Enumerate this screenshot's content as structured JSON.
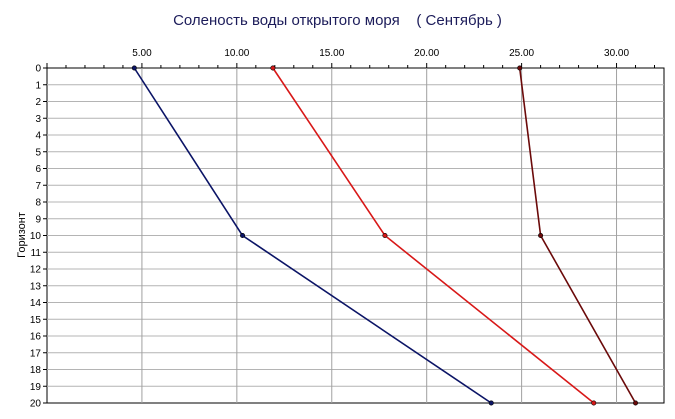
{
  "chart_data": {
    "type": "line",
    "title": "Соленость воды открытого моря    ( Сентябрь )",
    "xlabel": "",
    "ylabel": "Горизонт",
    "x_axis_position": "top",
    "y_axis_inverted": true,
    "xlim": [
      0,
      32.5
    ],
    "ylim": [
      0,
      20
    ],
    "x_ticks": [
      5,
      10,
      15,
      20,
      25,
      30
    ],
    "x_tick_labels": [
      "5.00",
      "10.00",
      "15.00",
      "20.00",
      "25.00",
      "30.00"
    ],
    "y_ticks": [
      0,
      1,
      2,
      3,
      4,
      5,
      6,
      7,
      8,
      9,
      10,
      11,
      12,
      13,
      14,
      15,
      16,
      17,
      18,
      19,
      20
    ],
    "y_tick_labels": [
      "0",
      "1",
      "2",
      "3",
      "4",
      "5",
      "6",
      "7",
      "8",
      "9",
      "10",
      "11",
      "12",
      "13",
      "14",
      "15",
      "16",
      "17",
      "18",
      "19",
      "20"
    ],
    "grid": true,
    "legend": "none",
    "series": [
      {
        "color": "#0b1466",
        "points": [
          {
            "x": 4.6,
            "y": 0
          },
          {
            "x": 10.3,
            "y": 10
          },
          {
            "x": 23.4,
            "y": 20
          }
        ]
      },
      {
        "color": "#d81818",
        "points": [
          {
            "x": 11.9,
            "y": 0
          },
          {
            "x": 17.8,
            "y": 10
          },
          {
            "x": 28.8,
            "y": 20
          }
        ]
      },
      {
        "color": "#6b0a0a",
        "points": [
          {
            "x": 24.9,
            "y": 0
          },
          {
            "x": 26.0,
            "y": 10
          },
          {
            "x": 31.0,
            "y": 20
          }
        ]
      }
    ]
  }
}
